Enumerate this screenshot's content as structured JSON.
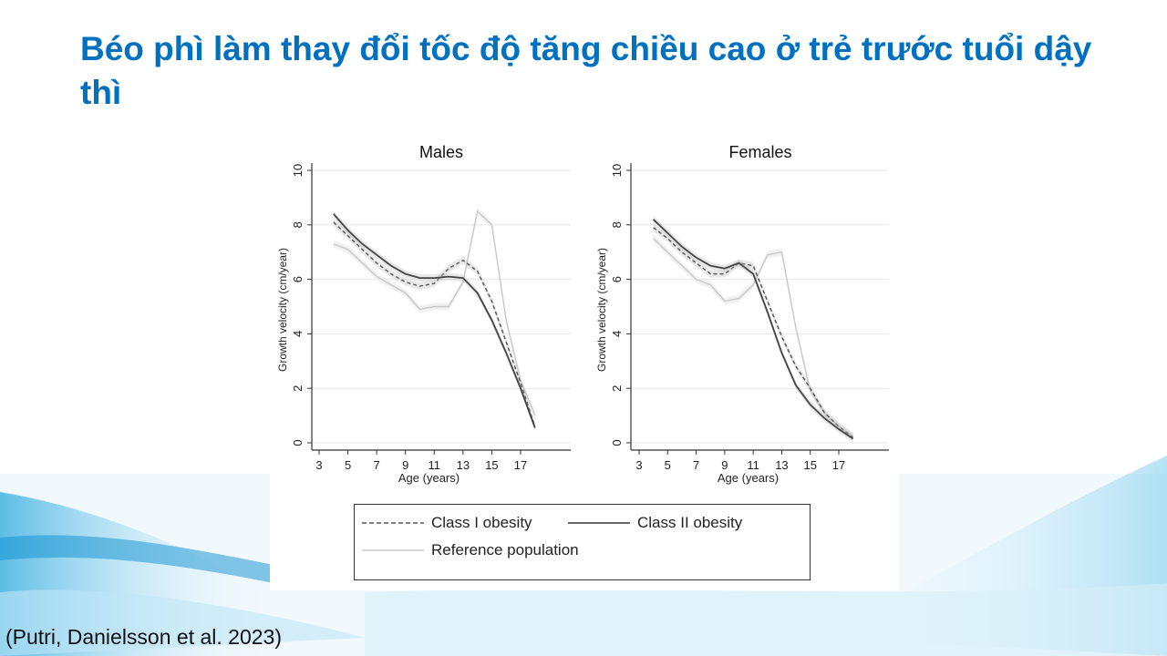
{
  "slide": {
    "title": "Béo phì làm thay đổi tốc độ tăng chiều cao ở trẻ trước tuổi dậy thì",
    "citation": "(Putri, Danielsson et al. 2023)",
    "accent_color": "#0070C0"
  },
  "legend": {
    "class1": "Class I obesity",
    "class2": "Class II obesity",
    "reference": "Reference population"
  },
  "chart_data": [
    {
      "type": "line",
      "title": "Males",
      "xlabel": "Age (years)",
      "ylabel": "Growth velocity (cm/year)",
      "xlim": [
        3,
        20
      ],
      "ylim": [
        0,
        10
      ],
      "xticks": [
        "3",
        "5",
        "7",
        "9",
        "11",
        "13",
        "15",
        "17"
      ],
      "yticks": [
        "0",
        "2",
        "4",
        "6",
        "8",
        "10"
      ],
      "grid": true,
      "x": [
        4,
        5,
        6,
        7,
        8,
        9,
        10,
        11,
        12,
        13,
        14,
        15,
        16,
        17,
        18
      ],
      "series": [
        {
          "name": "Class I obesity",
          "style": "dashed",
          "color": "#555555",
          "values": [
            8.1,
            7.6,
            7.1,
            6.6,
            6.2,
            5.9,
            5.75,
            5.85,
            6.4,
            6.7,
            6.3,
            5.2,
            3.7,
            2.2,
            0.6
          ]
        },
        {
          "name": "Class II obesity",
          "style": "solid",
          "color": "#444444",
          "values": [
            8.4,
            7.8,
            7.3,
            6.9,
            6.5,
            6.2,
            6.05,
            6.05,
            6.1,
            6.05,
            5.5,
            4.5,
            3.3,
            2.0,
            0.55
          ]
        },
        {
          "name": "Reference population",
          "style": "solid",
          "color": "#c8c8c8",
          "values": [
            7.3,
            7.1,
            6.6,
            6.1,
            5.8,
            5.5,
            4.9,
            5.0,
            5.0,
            5.9,
            8.5,
            8.0,
            4.5,
            2.3,
            1.0
          ]
        }
      ]
    },
    {
      "type": "line",
      "title": "Females",
      "xlabel": "Age (years)",
      "ylabel": "Growth velocity (cm/year)",
      "xlim": [
        3,
        20
      ],
      "ylim": [
        0,
        10
      ],
      "xticks": [
        "3",
        "5",
        "7",
        "9",
        "11",
        "13",
        "15",
        "17"
      ],
      "yticks": [
        "0",
        "2",
        "4",
        "6",
        "8",
        "10"
      ],
      "grid": true,
      "x": [
        4,
        5,
        6,
        7,
        8,
        9,
        10,
        11,
        12,
        13,
        14,
        15,
        16,
        17,
        18
      ],
      "series": [
        {
          "name": "Class I obesity",
          "style": "dashed",
          "color": "#555555",
          "values": [
            7.9,
            7.5,
            7.0,
            6.6,
            6.2,
            6.2,
            6.6,
            6.5,
            5.2,
            3.9,
            2.8,
            2.0,
            1.1,
            0.6,
            0.2
          ]
        },
        {
          "name": "Class II obesity",
          "style": "solid",
          "color": "#444444",
          "values": [
            8.2,
            7.7,
            7.2,
            6.8,
            6.5,
            6.4,
            6.6,
            6.2,
            4.8,
            3.3,
            2.1,
            1.4,
            0.9,
            0.5,
            0.15
          ]
        },
        {
          "name": "Reference population",
          "style": "solid",
          "color": "#c8c8c8",
          "values": [
            7.5,
            7.0,
            6.5,
            6.0,
            5.8,
            5.2,
            5.3,
            5.8,
            6.9,
            7.0,
            4.2,
            1.9,
            1.1,
            0.6,
            0.25
          ]
        }
      ]
    }
  ]
}
